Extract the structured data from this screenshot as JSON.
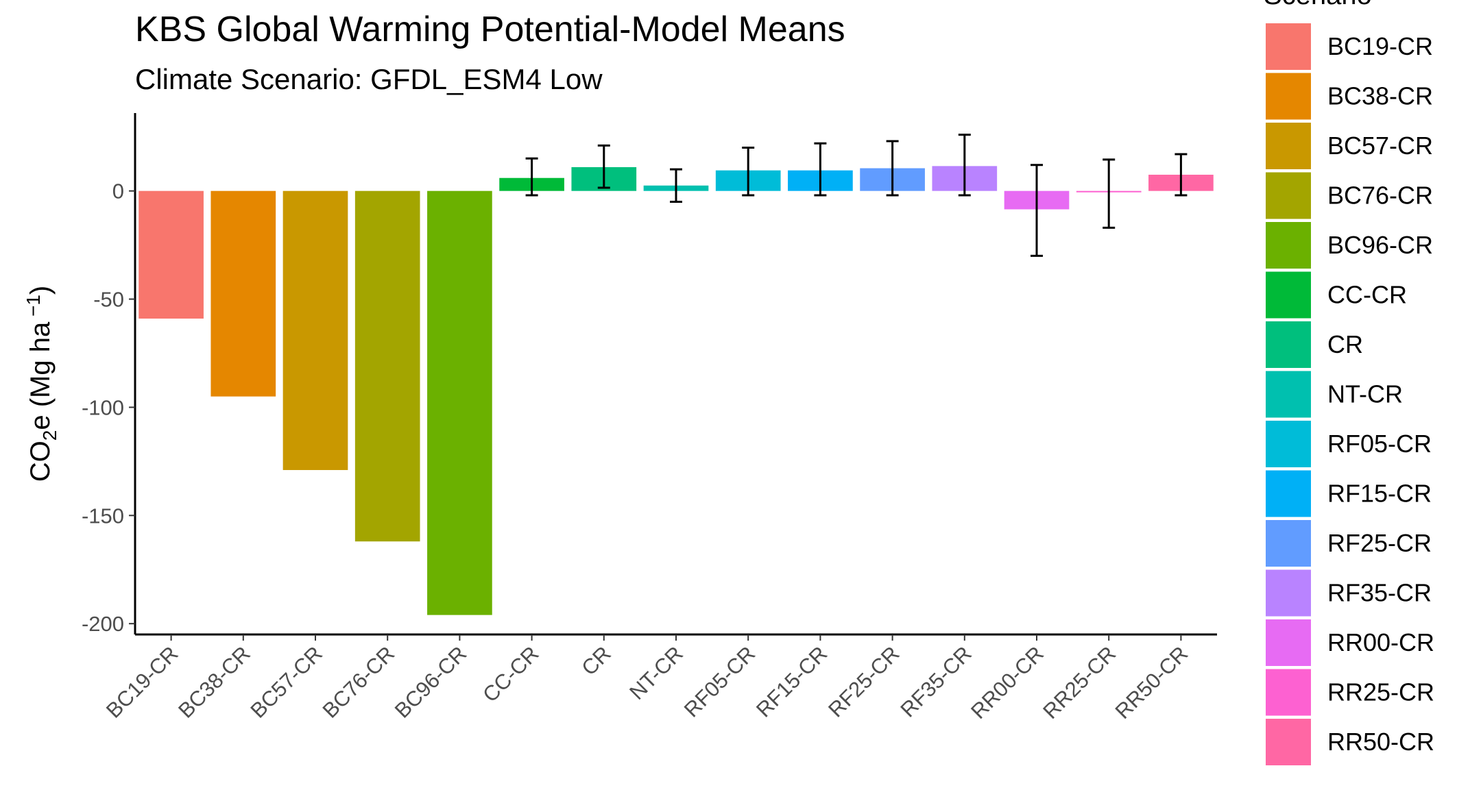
{
  "chart_data": {
    "type": "bar",
    "title": "KBS  Global Warming Potential-Model Means",
    "subtitle": "Climate Scenario: GFDL_ESM4 Low",
    "xlabel": "",
    "ylabel_parts": [
      "CO",
      "2",
      "e (Mg ha",
      " −1",
      ")"
    ],
    "ylim": [
      -205,
      36
    ],
    "yticks": [
      0,
      -50,
      -100,
      -150,
      -200
    ],
    "grid": false,
    "legend_title": "Scenario",
    "legend_position": "right",
    "categories": [
      "BC19-CR",
      "BC38-CR",
      "BC57-CR",
      "BC76-CR",
      "BC96-CR",
      "CC-CR",
      "CR",
      "NT-CR",
      "RF05-CR",
      "RF15-CR",
      "RF25-CR",
      "RF35-CR",
      "RR00-CR",
      "RR25-CR",
      "RR50-CR"
    ],
    "values": [
      -59,
      -95,
      -129,
      -162,
      -196,
      6,
      11,
      2.5,
      9.5,
      9.5,
      10.5,
      11.5,
      -8.5,
      -0.5,
      7.5
    ],
    "error_low": [
      null,
      null,
      null,
      null,
      null,
      -2,
      1.5,
      -5,
      -2,
      -2,
      -2,
      -2,
      -30,
      -17,
      -2
    ],
    "error_high": [
      null,
      null,
      null,
      null,
      null,
      15,
      21,
      10,
      20,
      22,
      23,
      26,
      12,
      14.5,
      17
    ],
    "colors": [
      "#F8766D",
      "#E58700",
      "#C99800",
      "#A3A500",
      "#6BB100",
      "#00BA38",
      "#00BF7D",
      "#00C0AF",
      "#00BCD8",
      "#00B0F6",
      "#619CFF",
      "#B983FF",
      "#E76BF3",
      "#FD61D1",
      "#FF67A4"
    ]
  }
}
